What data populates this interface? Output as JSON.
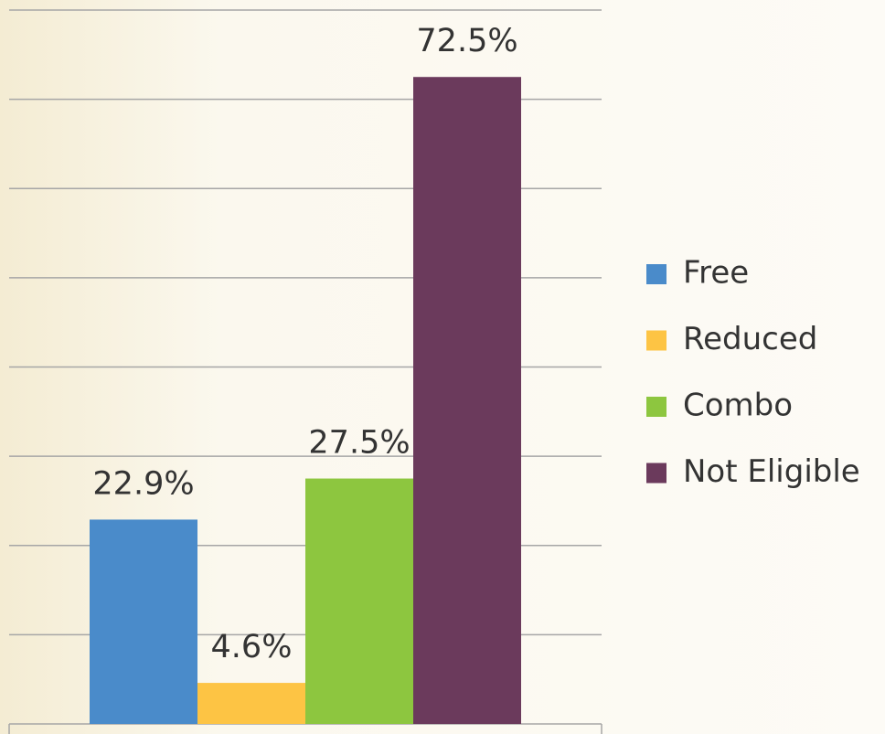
{
  "chart_data": {
    "type": "bar",
    "categories": [
      null
    ],
    "series": [
      {
        "name": "Free",
        "color": "#4a8bca",
        "values": [
          22.9
        ],
        "value_labels": [
          "22.9%"
        ]
      },
      {
        "name": "Reduced",
        "color": "#fdc444",
        "values": [
          4.6
        ],
        "value_labels": [
          "4.6%"
        ]
      },
      {
        "name": "Combo",
        "color": "#8dc63f",
        "values": [
          27.5
        ],
        "value_labels": [
          "27.5%"
        ]
      },
      {
        "name": "Not Eligible",
        "color": "#6b3a5c",
        "values": [
          72.5
        ],
        "value_labels": [
          "72.5%"
        ]
      }
    ],
    "ylim": [
      0,
      80
    ],
    "yticks": [
      0,
      10,
      20,
      30,
      40,
      50,
      60,
      70,
      80
    ],
    "grid": true,
    "legend": "right"
  }
}
